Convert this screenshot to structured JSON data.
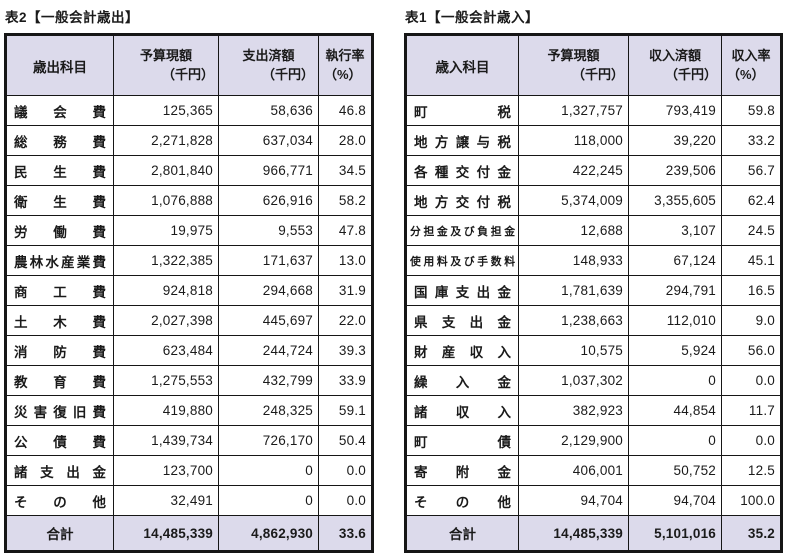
{
  "colors": {
    "header_bg": "#dcdaeb",
    "border": "#161616",
    "page_bg": "#ffffff"
  },
  "tables": [
    {
      "title": "表2【一般会計歳出】",
      "columns": {
        "item": "歳出科目",
        "budget": "予算現額",
        "budget_unit": "（千円）",
        "paid": "支出済額",
        "paid_unit": "（千円）",
        "rate": "執行率",
        "rate_unit": "（%）"
      },
      "rows": [
        {
          "item": "議会費",
          "budget": "125,365",
          "paid": "58,636",
          "rate": "46.8",
          "small": false
        },
        {
          "item": "総務費",
          "budget": "2,271,828",
          "paid": "637,034",
          "rate": "28.0",
          "small": false
        },
        {
          "item": "民生費",
          "budget": "2,801,840",
          "paid": "966,771",
          "rate": "34.5",
          "small": false
        },
        {
          "item": "衛生費",
          "budget": "1,076,888",
          "paid": "626,916",
          "rate": "58.2",
          "small": false
        },
        {
          "item": "労働費",
          "budget": "19,975",
          "paid": "9,553",
          "rate": "47.8",
          "small": false
        },
        {
          "item": "農林水産業費",
          "budget": "1,322,385",
          "paid": "171,637",
          "rate": "13.0",
          "small": false
        },
        {
          "item": "商工費",
          "budget": "924,818",
          "paid": "294,668",
          "rate": "31.9",
          "small": false
        },
        {
          "item": "土木費",
          "budget": "2,027,398",
          "paid": "445,697",
          "rate": "22.0",
          "small": false
        },
        {
          "item": "消防費",
          "budget": "623,484",
          "paid": "244,724",
          "rate": "39.3",
          "small": false
        },
        {
          "item": "教育費",
          "budget": "1,275,553",
          "paid": "432,799",
          "rate": "33.9",
          "small": false
        },
        {
          "item": "災害復旧費",
          "budget": "419,880",
          "paid": "248,325",
          "rate": "59.1",
          "small": false
        },
        {
          "item": "公債費",
          "budget": "1,439,734",
          "paid": "726,170",
          "rate": "50.4",
          "small": false
        },
        {
          "item": "諸支出金",
          "budget": "123,700",
          "paid": "0",
          "rate": "0.0",
          "small": false
        },
        {
          "item": "その他",
          "budget": "32,491",
          "paid": "0",
          "rate": "0.0",
          "small": false
        }
      ],
      "total": {
        "label": "合計",
        "budget": "14,485,339",
        "paid": "4,862,930",
        "rate": "33.6"
      }
    },
    {
      "title": "表1【一般会計歳入】",
      "columns": {
        "item": "歳入科目",
        "budget": "予算現額",
        "budget_unit": "（千円）",
        "paid": "収入済額",
        "paid_unit": "（千円）",
        "rate": "収入率",
        "rate_unit": "（%）"
      },
      "rows": [
        {
          "item": "町税",
          "budget": "1,327,757",
          "paid": "793,419",
          "rate": "59.8",
          "small": false
        },
        {
          "item": "地方譲与税",
          "budget": "118,000",
          "paid": "39,220",
          "rate": "33.2",
          "small": false
        },
        {
          "item": "各種交付金",
          "budget": "422,245",
          "paid": "239,506",
          "rate": "56.7",
          "small": false
        },
        {
          "item": "地方交付税",
          "budget": "5,374,009",
          "paid": "3,355,605",
          "rate": "62.4",
          "small": false
        },
        {
          "item": "分担金及び負担金",
          "budget": "12,688",
          "paid": "3,107",
          "rate": "24.5",
          "small": true
        },
        {
          "item": "使用料及び手数料",
          "budget": "148,933",
          "paid": "67,124",
          "rate": "45.1",
          "small": true
        },
        {
          "item": "国庫支出金",
          "budget": "1,781,639",
          "paid": "294,791",
          "rate": "16.5",
          "small": false
        },
        {
          "item": "県支出金",
          "budget": "1,238,663",
          "paid": "112,010",
          "rate": "9.0",
          "small": false
        },
        {
          "item": "財産収入",
          "budget": "10,575",
          "paid": "5,924",
          "rate": "56.0",
          "small": false
        },
        {
          "item": "繰入金",
          "budget": "1,037,302",
          "paid": "0",
          "rate": "0.0",
          "small": false
        },
        {
          "item": "諸収入",
          "budget": "382,923",
          "paid": "44,854",
          "rate": "11.7",
          "small": false
        },
        {
          "item": "町債",
          "budget": "2,129,900",
          "paid": "0",
          "rate": "0.0",
          "small": false
        },
        {
          "item": "寄附金",
          "budget": "406,001",
          "paid": "50,752",
          "rate": "12.5",
          "small": false
        },
        {
          "item": "その他",
          "budget": "94,704",
          "paid": "94,704",
          "rate": "100.0",
          "small": false
        }
      ],
      "total": {
        "label": "合計",
        "budget": "14,485,339",
        "paid": "5,101,016",
        "rate": "35.2"
      }
    }
  ]
}
